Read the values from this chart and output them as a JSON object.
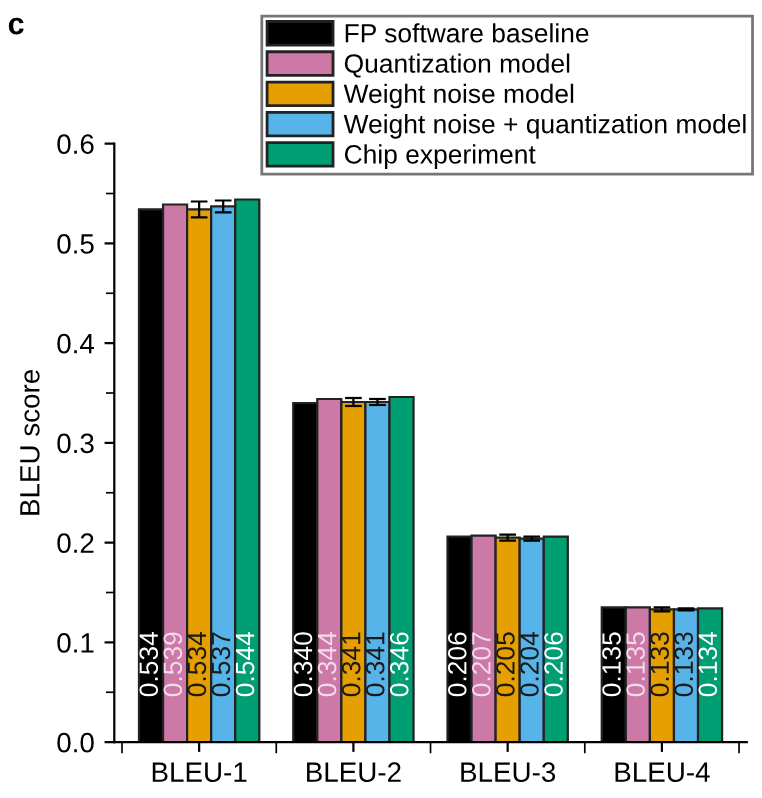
{
  "chart_data": {
    "type": "bar",
    "categories": [
      "BLEU-1",
      "BLEU-2",
      "BLEU-3",
      "BLEU-4"
    ],
    "ylabel": "BLEU score",
    "annotations": [
      "c"
    ],
    "series": [
      {
        "name": "FP software baseline",
        "color": "#000000",
        "values": [
          0.534,
          0.34,
          0.206,
          0.135
        ],
        "value_labels": [
          "0.534",
          "0.340",
          "0.206",
          "0.135"
        ]
      },
      {
        "name": "Quantization model",
        "color": "#cc79a7",
        "values": [
          0.539,
          0.344,
          0.207,
          0.135
        ],
        "value_labels": [
          "0.539",
          "0.344",
          "0.207",
          "0.135"
        ]
      },
      {
        "name": "Weight noise model",
        "color": "#e69f00",
        "values": [
          0.534,
          0.341,
          0.205,
          0.133
        ],
        "errors": [
          0.008,
          0.004,
          0.003,
          0.002
        ],
        "value_labels": [
          "0.534",
          "0.341",
          "0.205",
          "0.133"
        ]
      },
      {
        "name": "Weight noise + quantization model",
        "color": "#56b4e9",
        "values": [
          0.537,
          0.341,
          0.204,
          0.133
        ],
        "errors": [
          0.006,
          0.003,
          0.002,
          0.001
        ],
        "value_labels": [
          "0.537",
          "0.341",
          "0.204",
          "0.133"
        ]
      },
      {
        "name": "Chip experiment",
        "color": "#009e73",
        "values": [
          0.544,
          0.346,
          0.206,
          0.134
        ],
        "value_labels": [
          "0.544",
          "0.346",
          "0.206",
          "0.134"
        ]
      }
    ],
    "ylim": [
      0,
      0.6
    ],
    "yticks": [
      {
        "value": 0,
        "label": "0.0"
      },
      {
        "value": 0.05,
        "label": null
      },
      {
        "value": 0.1,
        "label": "0.1"
      },
      {
        "value": 0.15,
        "label": null
      },
      {
        "value": 0.2,
        "label": "0.2"
      },
      {
        "value": 0.25,
        "label": null
      },
      {
        "value": 0.3,
        "label": "0.3"
      },
      {
        "value": 0.35,
        "label": null
      },
      {
        "value": 0.4,
        "label": "0.4"
      },
      {
        "value": 0.45,
        "label": null
      },
      {
        "value": 0.5,
        "label": "0.5"
      },
      {
        "value": 0.55,
        "label": null
      },
      {
        "value": 0.6,
        "label": "0.6"
      }
    ],
    "legend": "top right",
    "grid": false
  }
}
